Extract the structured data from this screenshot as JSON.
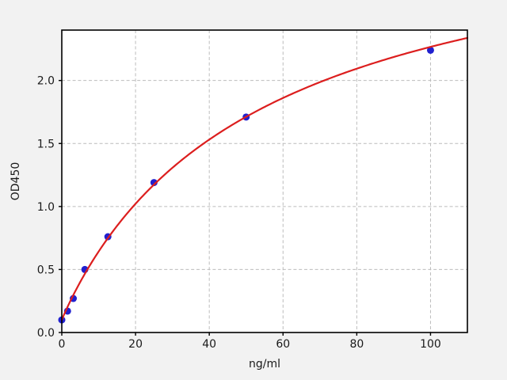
{
  "figure": {
    "background_color": "#f2f2f2",
    "plot_background_color": "#ffffff",
    "grid_color": "#bcbcbc",
    "spine_color": "#000000",
    "tick_text_color": "#1a1a1a"
  },
  "chart_data": {
    "type": "scatter",
    "title": "",
    "xlabel": "ng/ml",
    "ylabel": "OD450",
    "xlim": [
      0,
      110
    ],
    "ylim": [
      0,
      2.4
    ],
    "grid": "dashed",
    "legend": "none",
    "x_ticks": [
      {
        "value": 0,
        "label": "0"
      },
      {
        "value": 20,
        "label": "20"
      },
      {
        "value": 40,
        "label": "40"
      },
      {
        "value": 60,
        "label": "60"
      },
      {
        "value": 80,
        "label": "80"
      },
      {
        "value": 100,
        "label": "100"
      }
    ],
    "y_ticks": [
      {
        "value": 0.0,
        "label": "0.0"
      },
      {
        "value": 0.5,
        "label": "0.5"
      },
      {
        "value": 1.0,
        "label": "1.0"
      },
      {
        "value": 1.5,
        "label": "1.5"
      },
      {
        "value": 2.0,
        "label": "2.0"
      }
    ],
    "series": [
      {
        "name": "standard-points",
        "type": "scatter",
        "color": "#2020cf",
        "marker_radius": 4.5,
        "x": [
          0,
          1.56,
          3.12,
          6.25,
          12.5,
          25,
          50,
          100
        ],
        "y": [
          0.1,
          0.17,
          0.27,
          0.5,
          0.76,
          1.19,
          1.71,
          2.24
        ]
      },
      {
        "name": "4PL-fit-curve",
        "type": "line",
        "color": "#dc1e1e",
        "line_width": 2.2,
        "model": "4PL",
        "params": {
          "a": 0.1,
          "b": 0.97,
          "c": 55,
          "d": 3.48
        },
        "x_range": [
          0,
          110
        ]
      }
    ]
  }
}
